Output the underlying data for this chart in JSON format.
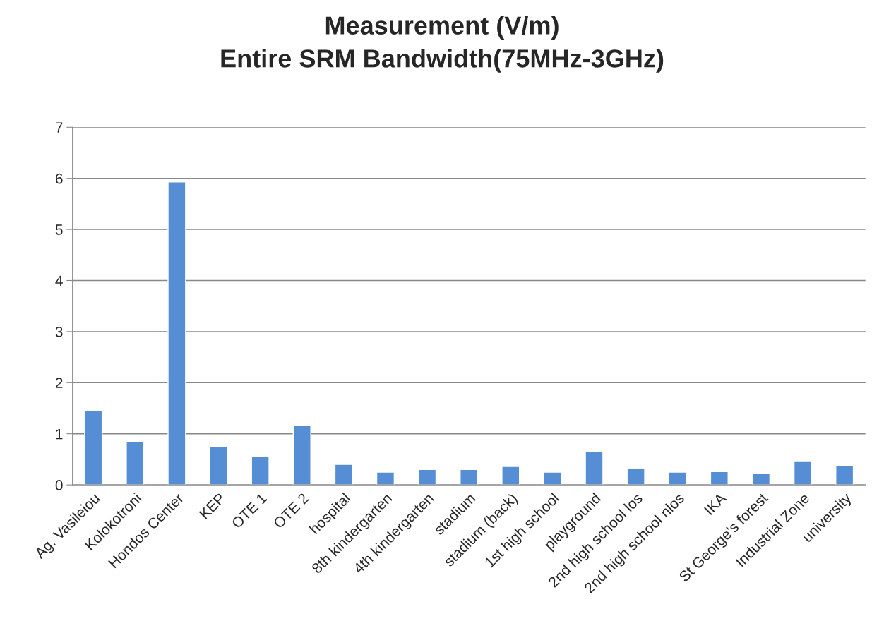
{
  "chart_data": {
    "type": "bar",
    "title": "Measurement (V/m)\nEntire SRM Bandwidth(75MHz-3GHz)",
    "categories": [
      "Ag. Vasileiou",
      "Kolokotroni",
      "Hondos Center",
      "KEP",
      "OTE 1",
      "OTE 2",
      "hospital",
      "8th kindergarten",
      "4th kindergarten",
      "stadium",
      "stadium (back)",
      "1st high school",
      "playground",
      "2nd high school los",
      "2nd high school nlos",
      "IKA",
      "St George's forest",
      "Industrial Zone",
      "university"
    ],
    "values": [
      1.46,
      0.84,
      5.93,
      0.75,
      0.55,
      1.16,
      0.4,
      0.25,
      0.3,
      0.3,
      0.36,
      0.25,
      0.65,
      0.32,
      0.25,
      0.26,
      0.22,
      0.47,
      0.37
    ],
    "color": "#558ed5",
    "ylim": [
      0,
      7
    ],
    "yticks": [
      0,
      1,
      2,
      3,
      4,
      5,
      6,
      7
    ],
    "grid": "y",
    "legend": false
  }
}
